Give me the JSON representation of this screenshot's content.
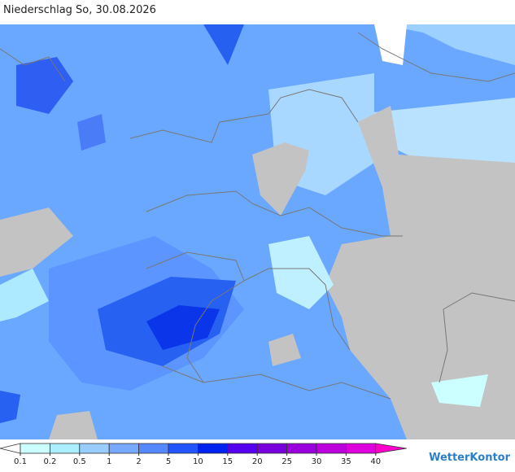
{
  "header": {
    "title": "Niederschlag So, 30.08.2026"
  },
  "legend": {
    "labels": [
      0.1,
      0.2,
      0.5,
      1,
      2,
      5,
      10,
      15,
      20,
      25,
      30,
      35,
      40
    ],
    "colors": [
      "#ffffff",
      "#ccffff",
      "#aaeeff",
      "#99ccff",
      "#77aaff",
      "#5588ff",
      "#2255ff",
      "#0022ee",
      "#5500ee",
      "#7700dd",
      "#9900dd",
      "#bb00dd",
      "#dd00dd",
      "#ff00cc"
    ]
  },
  "logo": {
    "text": "WetterKontor"
  }
}
